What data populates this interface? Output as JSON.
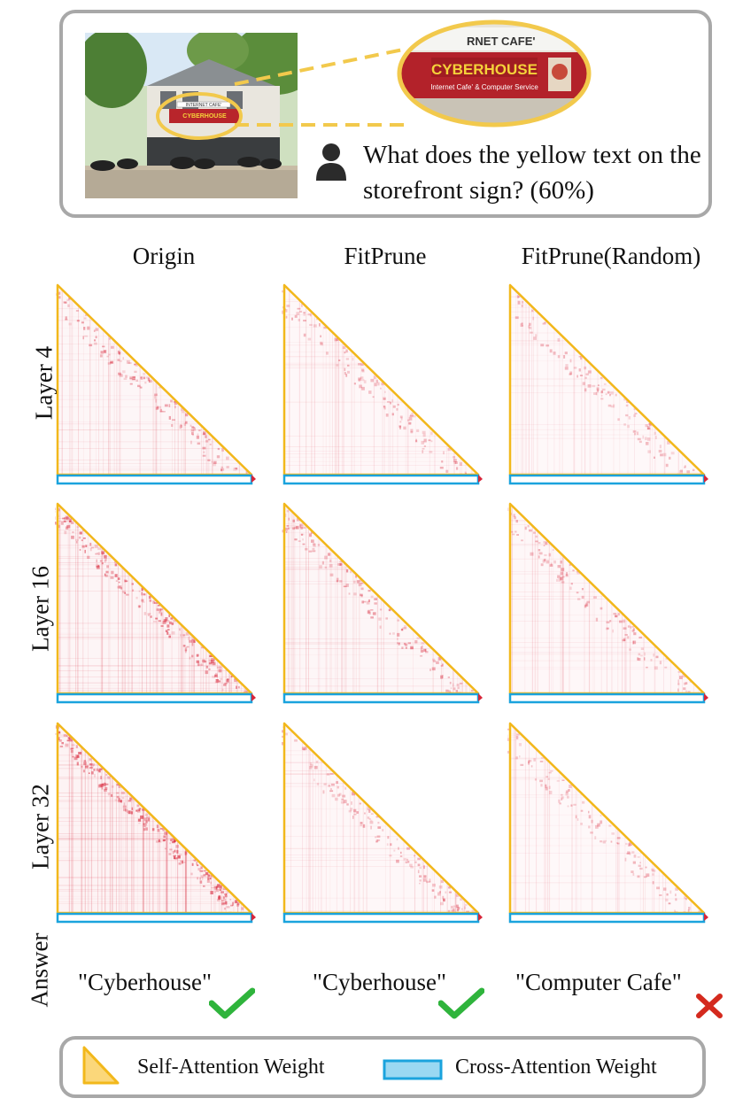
{
  "question": {
    "text": "What does the yellow text on the storefront sign? (60%)",
    "user_icon": "user-icon"
  },
  "photo": {
    "sign_main": "CYBERHOUSE",
    "sign_sub": "Internet Cafe' & Computer Service",
    "sign_top": "INTERNET CAFE'",
    "zoom_top": "RNET CAFE'"
  },
  "columns": [
    "Origin",
    "FitPrune",
    "FitPrune(Random)"
  ],
  "rows": [
    "Layer 4",
    "Layer 16",
    "Layer 32"
  ],
  "answer_label": "Answer",
  "answers": [
    {
      "text": "\"Cyberhouse\"",
      "correct": true,
      "mark_icon": "check-icon"
    },
    {
      "text": "\"Cyberhouse\"",
      "correct": true,
      "mark_icon": "check-icon"
    },
    {
      "text": "\"Computer Cafe\"",
      "correct": false,
      "mark_icon": "cross-icon"
    }
  ],
  "legend": {
    "self_attention": "Self-Attention Weight",
    "cross_attention": "Cross-Attention Weight"
  },
  "colors": {
    "self_attention": "#f2b81b",
    "cross_attention": "#1aa3dd",
    "attention_heat": "#d8263a",
    "correct": "#2fb43c",
    "wrong": "#d42a1e",
    "panel_border": "#a8a8a8",
    "zoom_ring": "#f2c94c"
  },
  "intensity": [
    [
      0.45,
      0.35,
      0.3
    ],
    [
      0.7,
      0.45,
      0.35
    ],
    [
      0.85,
      0.4,
      0.3
    ]
  ]
}
